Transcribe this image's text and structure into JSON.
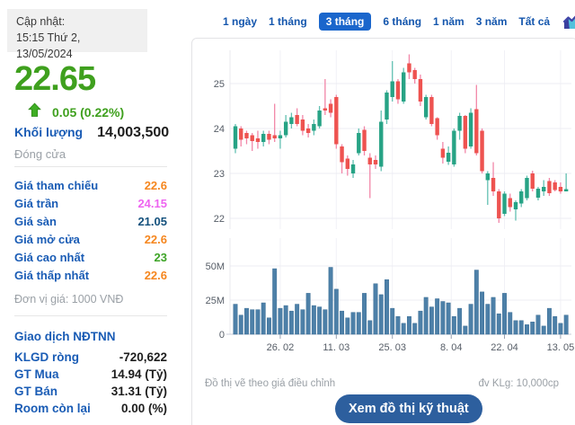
{
  "quote": {
    "updated_label": "Cập nhật:",
    "updated_datetime": "15:15 Thứ 2, 13/05/2024",
    "last_price": "22.65",
    "change_text": "0.05 (0.22%)",
    "direction": "up",
    "volume_label": "Khối lượng",
    "volume_value": "14,003,500",
    "session_status": "Đóng cửa",
    "price_rows": [
      {
        "label": "Giá tham chiếu",
        "value": "22.6",
        "color": "#f5861e"
      },
      {
        "label": "Giá trần",
        "value": "24.15",
        "color": "#ee64f0"
      },
      {
        "label": "Giá sàn",
        "value": "21.05",
        "color": "#14517d"
      },
      {
        "label": "Giá mở cửa",
        "value": "22.6",
        "color": "#f5861e"
      },
      {
        "label": "Giá cao nhất",
        "value": "23",
        "color": "#3da426"
      },
      {
        "label": "Giá thấp nhất",
        "value": "22.6",
        "color": "#f5861e"
      }
    ],
    "price_unit_note": "Đơn vị giá: 1000 VNĐ",
    "foreign_section_title": "Giao dịch NĐTNN",
    "foreign_rows": [
      {
        "label": "KLGD ròng",
        "value": "-720,622"
      },
      {
        "label": "GT Mua",
        "value": "14.94 (Tỷ)"
      },
      {
        "label": "GT Bán",
        "value": "31.31 (Tỷ)"
      },
      {
        "label": "Room còn lại",
        "value": "0.00 (%)"
      }
    ],
    "colors": {
      "up_green": "#3fa01e",
      "label_blue": "#1a5cb5"
    }
  },
  "range_tabs": {
    "items": [
      {
        "label": "1 ngày",
        "active": false
      },
      {
        "label": "1 tháng",
        "active": false
      },
      {
        "label": "3 tháng",
        "active": true
      },
      {
        "label": "6 tháng",
        "active": false
      },
      {
        "label": "1 năm",
        "active": false
      },
      {
        "label": "3 năm",
        "active": false
      },
      {
        "label": "Tất cả",
        "active": false
      }
    ],
    "active_bg": "#1a66cc"
  },
  "chart_data": {
    "type": "candlestick+volume",
    "price_axis_ticks": [
      25,
      24,
      23,
      22
    ],
    "volume_axis_ticks": [
      {
        "v": 50,
        "label": "50M"
      },
      {
        "v": 25,
        "label": "25M"
      },
      {
        "v": 0,
        "label": "0"
      }
    ],
    "x_ticks": [
      {
        "index": 8,
        "label": "26. 02"
      },
      {
        "index": 18,
        "label": "11. 03"
      },
      {
        "index": 28,
        "label": "25. 03"
      },
      {
        "index": 38.5,
        "label": "8. 04"
      },
      {
        "index": 48,
        "label": "22. 04"
      },
      {
        "index": 58,
        "label": "13. 05"
      }
    ],
    "candles_ohlc": [
      [
        23.55,
        24.1,
        23.45,
        24.05
      ],
      [
        24.0,
        24.05,
        23.6,
        23.75
      ],
      [
        23.9,
        23.95,
        23.65,
        23.78
      ],
      [
        23.85,
        23.9,
        23.5,
        23.72
      ],
      [
        23.78,
        23.95,
        23.55,
        23.7
      ],
      [
        23.7,
        23.95,
        23.6,
        23.88
      ],
      [
        23.88,
        23.95,
        23.65,
        23.75
      ],
      [
        23.85,
        24.55,
        23.7,
        23.78
      ],
      [
        23.78,
        23.95,
        23.55,
        23.85
      ],
      [
        23.85,
        24.3,
        23.8,
        24.15
      ],
      [
        24.1,
        24.35,
        24.0,
        24.25
      ],
      [
        24.3,
        24.45,
        24.05,
        24.1
      ],
      [
        24.2,
        24.3,
        23.85,
        23.95
      ],
      [
        24.0,
        24.1,
        23.8,
        23.9
      ],
      [
        23.95,
        24.2,
        23.85,
        24.1
      ],
      [
        24.05,
        24.5,
        24.0,
        24.4
      ],
      [
        24.45,
        25.1,
        24.3,
        24.4
      ],
      [
        24.55,
        24.65,
        24.25,
        24.35
      ],
      [
        24.7,
        24.75,
        23.55,
        23.65
      ],
      [
        23.6,
        23.65,
        23.0,
        23.25
      ],
      [
        23.33,
        23.4,
        22.95,
        23.1
      ],
      [
        23.0,
        23.3,
        22.9,
        23.2
      ],
      [
        23.45,
        24.0,
        23.4,
        23.9
      ],
      [
        23.97,
        24.05,
        23.4,
        23.5
      ],
      [
        23.35,
        23.45,
        22.45,
        23.2
      ],
      [
        23.3,
        23.4,
        23.1,
        23.2
      ],
      [
        23.15,
        24.4,
        23.05,
        24.15
      ],
      [
        24.2,
        24.85,
        24.1,
        24.8
      ],
      [
        24.7,
        25.5,
        24.6,
        25.05
      ],
      [
        25.05,
        25.1,
        24.55,
        24.65
      ],
      [
        24.6,
        25.35,
        24.55,
        25.25
      ],
      [
        25.45,
        25.65,
        25.1,
        25.25
      ],
      [
        25.3,
        25.35,
        25.0,
        25.1
      ],
      [
        25.1,
        25.2,
        24.5,
        24.6
      ],
      [
        24.25,
        24.75,
        24.2,
        24.7
      ],
      [
        24.7,
        24.75,
        24.05,
        24.1
      ],
      [
        24.23,
        24.25,
        23.75,
        23.85
      ],
      [
        23.55,
        23.7,
        23.22,
        23.35
      ],
      [
        23.26,
        23.6,
        23.19,
        23.46
      ],
      [
        23.2,
        24.0,
        23.15,
        23.95
      ],
      [
        23.95,
        24.35,
        23.75,
        24.28
      ],
      [
        24.28,
        24.3,
        23.45,
        23.55
      ],
      [
        23.6,
        24.45,
        23.55,
        24.35
      ],
      [
        24.43,
        24.97,
        23.4,
        23.45
      ],
      [
        23.95,
        24.0,
        23.0,
        23.05
      ],
      [
        22.85,
        23.05,
        22.3,
        23.0
      ],
      [
        22.9,
        23.25,
        22.5,
        22.6
      ],
      [
        22.6,
        22.65,
        21.9,
        22.0
      ],
      [
        22.1,
        22.6,
        22.05,
        22.55
      ],
      [
        22.45,
        22.55,
        22.15,
        22.25
      ],
      [
        22.2,
        22.4,
        21.95,
        22.36
      ],
      [
        22.33,
        22.65,
        22.25,
        22.6
      ],
      [
        22.45,
        22.95,
        22.4,
        22.9
      ],
      [
        23.0,
        23.06,
        22.6,
        22.66
      ],
      [
        22.46,
        22.7,
        22.4,
        22.66
      ],
      [
        22.6,
        22.85,
        22.5,
        22.7
      ],
      [
        22.83,
        22.9,
        22.5,
        22.56
      ],
      [
        22.8,
        22.85,
        22.6,
        22.63
      ],
      [
        22.7,
        22.8,
        22.55,
        22.6
      ],
      [
        22.6,
        23.0,
        22.6,
        22.65
      ]
    ],
    "volumes_millions": [
      22,
      14,
      19,
      18,
      18,
      23,
      12,
      48,
      19,
      21,
      17,
      22,
      18,
      30,
      21,
      20,
      18,
      49,
      33,
      17,
      12,
      16,
      16,
      30,
      10,
      37,
      29,
      40,
      19,
      13,
      8,
      13,
      8,
      17,
      27,
      20,
      26,
      24,
      23,
      13,
      19,
      6,
      22,
      47,
      31,
      22,
      27,
      15,
      30,
      16,
      10,
      10,
      7,
      9,
      14,
      6,
      19,
      13,
      8,
      14
    ],
    "colors": {
      "up_body": "#27a385",
      "up_wick": "#62c0b2",
      "down_body": "#ee5350",
      "down_wick": "#f286a8",
      "volume_bar": "#4d80a8",
      "grid": "#ededf3",
      "vgrid": "#f1f1f6",
      "axis_line": "#c9cdd8",
      "axis_text": "#555c66"
    }
  },
  "footer": {
    "note_left": "Đồ thị vẽ theo giá điều chỉnh",
    "note_right": "đv KLg: 10,000cp",
    "button_label": "Xem đồ thị kỹ thuật"
  }
}
